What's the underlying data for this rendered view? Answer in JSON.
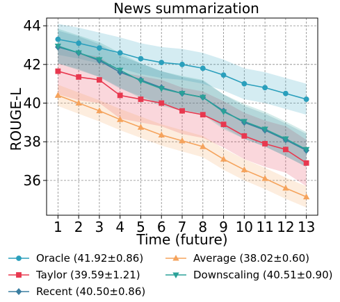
{
  "chart_data": {
    "type": "line",
    "title": "News summarization",
    "xlabel": "Time (future)",
    "ylabel": "ROUGE-L",
    "x": [
      1,
      2,
      3,
      4,
      5,
      6,
      7,
      8,
      9,
      10,
      11,
      12,
      13
    ],
    "xlim": [
      0.45,
      13.55
    ],
    "ylim": [
      34.2,
      44.4
    ],
    "yticks": [
      36,
      38,
      40,
      42,
      44
    ],
    "grid": true,
    "legend_position": "bottom",
    "series": [
      {
        "name": "Oracle (41.92±0.86)",
        "color": "#2a9fbc",
        "marker": "circle",
        "values": [
          43.3,
          43.1,
          42.85,
          42.6,
          42.3,
          42.1,
          42.0,
          41.8,
          41.45,
          41.0,
          40.8,
          40.5,
          40.2
        ],
        "band": 0.8
      },
      {
        "name": "Taylor (39.59±1.21)",
        "color": "#e8384f",
        "marker": "square",
        "values": [
          41.65,
          41.35,
          41.2,
          40.4,
          40.2,
          40.0,
          39.6,
          39.4,
          38.9,
          38.3,
          37.9,
          37.6,
          36.9
        ],
        "band": 1.2
      },
      {
        "name": "Recent (40.50±0.86)",
        "color": "#3b7ea1",
        "marker": "diamond",
        "values": [
          42.9,
          42.6,
          42.2,
          41.6,
          41.2,
          40.8,
          40.5,
          40.3,
          39.6,
          39.0,
          38.6,
          38.1,
          37.55
        ],
        "band": 0.85
      },
      {
        "name": "Average (38.02±0.60)",
        "color": "#f5a35c",
        "marker": "triangle-up",
        "values": [
          40.4,
          40.0,
          39.6,
          39.15,
          38.75,
          38.35,
          38.05,
          37.75,
          37.1,
          36.55,
          36.1,
          35.6,
          35.15
        ],
        "band": 0.55
      },
      {
        "name": "Downscaling (40.51±0.90)",
        "color": "#2aa198",
        "marker": "triangle-down",
        "values": [
          42.95,
          42.6,
          42.25,
          41.7,
          41.15,
          40.75,
          40.5,
          40.3,
          39.55,
          39.05,
          38.65,
          38.15,
          37.6
        ],
        "band": 0.9
      }
    ],
    "legend_order": [
      0,
      3,
      1,
      4,
      2
    ]
  }
}
